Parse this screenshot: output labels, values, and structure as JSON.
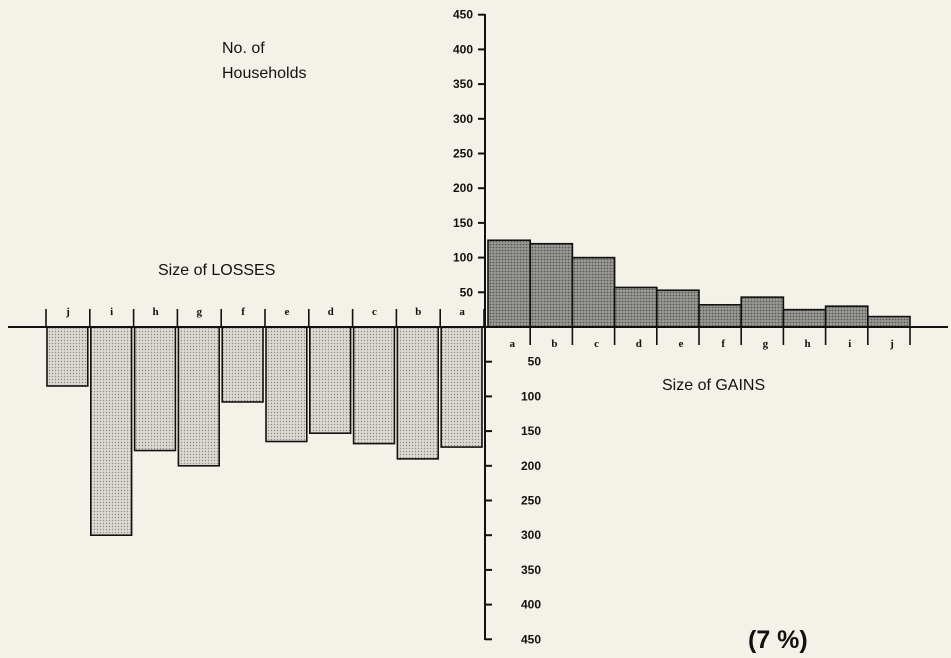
{
  "chart_data": {
    "type": "bar",
    "ylabel_line1": "No. of",
    "ylabel_line2": "Households",
    "losses_label": "Size of LOSSES",
    "gains_label": "Size of GAINS",
    "note": "(7 %)",
    "ylim": [
      -450,
      450
    ],
    "y_ticks_up": [
      50,
      100,
      150,
      200,
      250,
      300,
      350,
      400,
      450
    ],
    "y_ticks_down": [
      50,
      100,
      150,
      200,
      250,
      300,
      350,
      400,
      450
    ],
    "gains": {
      "categories": [
        "a",
        "b",
        "c",
        "d",
        "e",
        "f",
        "g",
        "h",
        "i",
        "j"
      ],
      "values": [
        125,
        120,
        100,
        57,
        53,
        32,
        43,
        25,
        30,
        15
      ]
    },
    "losses": {
      "categories": [
        "j",
        "i",
        "h",
        "g",
        "f",
        "e",
        "d",
        "c",
        "b",
        "a"
      ],
      "values": [
        85,
        300,
        178,
        200,
        108,
        165,
        153,
        168,
        190,
        173
      ]
    },
    "colors": {
      "gain_fill": "#8a8a84",
      "loss_fill": "#d4d2ca",
      "axis": "#111111"
    }
  }
}
